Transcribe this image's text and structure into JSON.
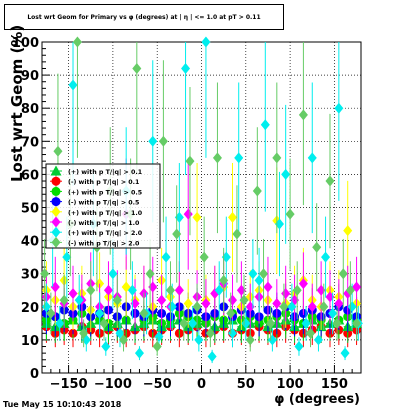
{
  "page": {
    "timestamp": "Tue May 15 10:10:43 2018"
  },
  "colors": {
    "frame": "#000000",
    "grid": "#000000",
    "background": "#ffffff"
  },
  "chart_data": {
    "type": "scatter",
    "title": "Lost wrt Geom for Primary vs φ (degrees) at | η | <= 1.0 at pT > 0.11",
    "xlabel": "φ (degrees)",
    "ylabel": "Lost wrt Geom (%)",
    "xlim": [
      -180,
      180
    ],
    "ylim": [
      0,
      100
    ],
    "x_ticks": [
      -150,
      -100,
      -50,
      0,
      50,
      100,
      150
    ],
    "x_tick_labels": [
      "−150",
      "−100",
      "−50",
      "0",
      "50",
      "100",
      "150"
    ],
    "y_ticks": [
      0,
      10,
      20,
      30,
      40,
      50,
      60,
      70,
      80,
      90,
      100
    ],
    "y_tick_labels": [
      "0",
      "10",
      "20",
      "30",
      "40",
      "50",
      "60",
      "70",
      "80",
      "90",
      "100"
    ],
    "grid": true,
    "legend_position": "left-middle",
    "legend": [
      {
        "label": "(+) with p T/|q| > 0.1",
        "color": "#00cc33",
        "marker": "triangle"
      },
      {
        "label": "(-) with p T/|q| > 0.1",
        "color": "#ff0000",
        "marker": "circle"
      },
      {
        "label": "(+) with p T/|q| > 0.5",
        "color": "#00dd00",
        "marker": "circle"
      },
      {
        "label": "(-) with p T/|q| > 0.5",
        "color": "#0000ff",
        "marker": "circle"
      },
      {
        "label": "(+) with p T/|q| > 1.0",
        "color": "#ffff00",
        "marker": "diamond"
      },
      {
        "label": "(-) with p T/|q| > 1.0",
        "color": "#ff00ff",
        "marker": "diamond"
      },
      {
        "label": "(+) with p T/|q| > 2.0",
        "color": "#00eeee",
        "marker": "diamond"
      },
      {
        "label": "(-) with p T/|q| > 2.0",
        "color": "#66cc66",
        "marker": "diamond"
      }
    ],
    "series": [
      {
        "name": "(-) with p T/|q| > 0.1",
        "color": "#ff0000",
        "marker": "circle",
        "x": [
          -175,
          -165,
          -155,
          -145,
          -135,
          -125,
          -115,
          -105,
          -95,
          -85,
          -75,
          -65,
          -55,
          -45,
          -35,
          -25,
          -15,
          -5,
          5,
          15,
          25,
          35,
          45,
          55,
          65,
          75,
          85,
          95,
          105,
          115,
          125,
          135,
          145,
          155,
          165,
          175
        ],
        "y": [
          14,
          12,
          13,
          12,
          14,
          13,
          12,
          13,
          14,
          12,
          13,
          14,
          12,
          13,
          14,
          12,
          13,
          14,
          12,
          13,
          14,
          12,
          13,
          12,
          14,
          13,
          12,
          14,
          13,
          12,
          13,
          14,
          12,
          13,
          12,
          13
        ]
      },
      {
        "name": "(+) with p T/|q| > 0.1",
        "color": "#00cc33",
        "marker": "triangle",
        "x": [
          -175,
          -165,
          -155,
          -145,
          -135,
          -125,
          -115,
          -105,
          -95,
          -85,
          -75,
          -65,
          -55,
          -45,
          -35,
          -25,
          -15,
          -5,
          5,
          15,
          25,
          35,
          45,
          55,
          65,
          75,
          85,
          95,
          105,
          115,
          125,
          135,
          145,
          155,
          165,
          175
        ],
        "y": [
          15,
          14,
          15,
          16,
          14,
          15,
          16,
          14,
          15,
          16,
          14,
          15,
          16,
          14,
          15,
          16,
          14,
          15,
          16,
          14,
          15,
          16,
          14,
          15,
          16,
          14,
          15,
          16,
          14,
          15,
          16,
          14,
          15,
          16,
          14,
          15
        ]
      },
      {
        "name": "(+) with p T/|q| > 0.5",
        "color": "#00dd00",
        "marker": "circle",
        "x": [
          -175,
          -165,
          -155,
          -145,
          -135,
          -125,
          -115,
          -105,
          -95,
          -85,
          -75,
          -65,
          -55,
          -45,
          -35,
          -25,
          -15,
          -5,
          5,
          15,
          25,
          35,
          45,
          55,
          65,
          75,
          85,
          95,
          105,
          115,
          125,
          135,
          145,
          155,
          165,
          175
        ],
        "y": [
          16,
          17,
          15,
          16,
          18,
          17,
          16,
          15,
          17,
          16,
          18,
          16,
          17,
          15,
          16,
          18,
          17,
          16,
          15,
          17,
          16,
          18,
          16,
          17,
          15,
          16,
          17,
          18,
          16,
          15,
          17,
          16,
          18,
          16,
          17,
          16
        ]
      },
      {
        "name": "(-) with p T/|q| > 0.5",
        "color": "#0000ff",
        "marker": "circle",
        "x": [
          -175,
          -165,
          -155,
          -145,
          -135,
          -125,
          -115,
          -105,
          -95,
          -85,
          -75,
          -65,
          -55,
          -45,
          -35,
          -25,
          -15,
          -5,
          5,
          15,
          25,
          35,
          45,
          55,
          65,
          75,
          85,
          95,
          105,
          115,
          125,
          135,
          145,
          155,
          165,
          175
        ],
        "y": [
          18,
          17,
          19,
          18,
          20,
          17,
          18,
          19,
          17,
          20,
          18,
          17,
          19,
          18,
          17,
          20,
          18,
          19,
          17,
          18,
          20,
          17,
          19,
          18,
          17,
          19,
          18,
          20,
          17,
          18,
          19,
          17,
          18,
          20,
          19,
          17
        ]
      },
      {
        "name": "(+) with p T/|q| > 1.0",
        "color": "#ffff00",
        "marker": "diamond",
        "x": [
          -175,
          -165,
          -155,
          -145,
          -135,
          -125,
          -115,
          -105,
          -95,
          -85,
          -75,
          -65,
          -55,
          -45,
          -35,
          -25,
          -15,
          -5,
          5,
          15,
          25,
          35,
          45,
          55,
          65,
          75,
          85,
          95,
          105,
          115,
          125,
          135,
          145,
          155,
          165,
          175
        ],
        "y": [
          25,
          22,
          28,
          20,
          24,
          19,
          27,
          23,
          21,
          26,
          22,
          24,
          20,
          28,
          23,
          25,
          21,
          47,
          22,
          24,
          26,
          47,
          20,
          23,
          25,
          22,
          46,
          21,
          24,
          28,
          22,
          20,
          25,
          23,
          43,
          21
        ]
      },
      {
        "name": "(-) with p T/|q| > 1.0",
        "color": "#ff00ff",
        "marker": "diamond",
        "x": [
          -175,
          -165,
          -155,
          -145,
          -135,
          -125,
          -115,
          -105,
          -95,
          -85,
          -75,
          -65,
          -55,
          -45,
          -35,
          -25,
          -15,
          -5,
          5,
          15,
          25,
          35,
          45,
          55,
          65,
          75,
          85,
          95,
          105,
          115,
          125,
          135,
          145,
          155,
          165,
          175
        ],
        "y": [
          23,
          26,
          21,
          24,
          22,
          27,
          20,
          25,
          23,
          48,
          21,
          24,
          26,
          22,
          20,
          25,
          48,
          23,
          21,
          24,
          27,
          22,
          25,
          20,
          23,
          26,
          21,
          24,
          22,
          27,
          20,
          25,
          23,
          21,
          24,
          26
        ]
      },
      {
        "name": "(+) with p T/|q| > 2.0",
        "color": "#00eeee",
        "marker": "diamond",
        "x": [
          -175,
          -168,
          -160,
          -152,
          -145,
          -138,
          -130,
          -122,
          -115,
          -108,
          -100,
          -92,
          -85,
          -78,
          -70,
          -62,
          -55,
          -48,
          -40,
          -33,
          -25,
          -18,
          -10,
          -3,
          5,
          12,
          20,
          28,
          35,
          42,
          50,
          58,
          65,
          72,
          80,
          88,
          95,
          102,
          110,
          118,
          125,
          132,
          140,
          148,
          155,
          162,
          170,
          177
        ],
        "y": [
          20,
          40,
          15,
          35,
          87,
          22,
          10,
          45,
          18,
          8,
          30,
          12,
          55,
          25,
          6,
          18,
          70,
          11,
          35,
          20,
          47,
          92,
          15,
          10,
          100,
          5,
          25,
          35,
          12,
          65,
          15,
          30,
          28,
          75,
          10,
          45,
          60,
          20,
          8,
          15,
          65,
          10,
          35,
          18,
          80,
          6,
          20,
          15
        ]
      },
      {
        "name": "(-) with p T/|q| > 2.0",
        "color": "#66cc66",
        "marker": "diamond",
        "x": [
          -177,
          -170,
          -162,
          -155,
          -148,
          -140,
          -133,
          -125,
          -118,
          -110,
          -103,
          -95,
          -88,
          -80,
          -73,
          -65,
          -58,
          -50,
          -43,
          -35,
          -28,
          -20,
          -13,
          -5,
          3,
          10,
          18,
          25,
          33,
          40,
          48,
          55,
          63,
          70,
          78,
          85,
          93,
          100,
          108,
          115,
          123,
          130,
          138,
          145,
          153,
          160,
          168,
          175
        ],
        "y": [
          30,
          18,
          67,
          22,
          45,
          100,
          12,
          25,
          38,
          15,
          55,
          22,
          10,
          48,
          92,
          18,
          30,
          8,
          70,
          25,
          42,
          15,
          64,
          20,
          35,
          12,
          65,
          28,
          18,
          42,
          22,
          10,
          55,
          30,
          15,
          65,
          20,
          48,
          25,
          78,
          12,
          38,
          20,
          58,
          15,
          30,
          25,
          15
        ]
      }
    ]
  }
}
